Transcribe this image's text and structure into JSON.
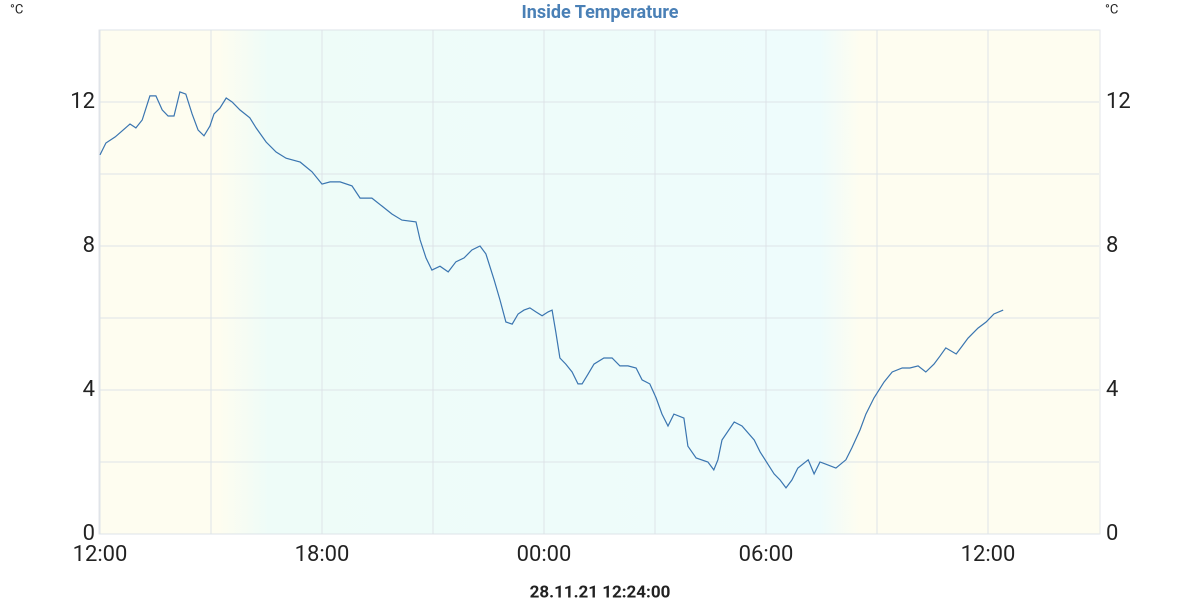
{
  "chart_data": {
    "type": "line",
    "title": "Inside Temperature",
    "y_unit": "°C",
    "y2_unit": "°C",
    "footer": "28.11.21 12:24:00",
    "xlim": [
      0,
      27
    ],
    "xticks": [
      {
        "value": 0,
        "label": "12:00"
      },
      {
        "value": 6,
        "label": "18:00"
      },
      {
        "value": 12,
        "label": "00:00"
      },
      {
        "value": 18,
        "label": "06:00"
      },
      {
        "value": 24,
        "label": "12:00"
      }
    ],
    "xminor": [
      3,
      9,
      15,
      21
    ],
    "ylim": [
      0,
      14
    ],
    "yticks": [
      0,
      4,
      8,
      12
    ],
    "yminor": [
      2,
      6,
      10,
      14
    ],
    "y2lim": [
      0,
      14
    ],
    "y2ticks": [
      0,
      4,
      8,
      12
    ],
    "grid": true,
    "x": [
      0,
      0.16,
      0.41,
      0.59,
      0.81,
      0.97,
      1.14,
      1.35,
      1.51,
      1.68,
      1.84,
      2.0,
      2.16,
      2.32,
      2.49,
      2.65,
      2.81,
      2.97,
      3.08,
      3.24,
      3.41,
      3.57,
      3.78,
      4.05,
      4.22,
      4.49,
      4.76,
      5.03,
      5.41,
      5.73,
      6.0,
      6.22,
      6.49,
      6.81,
      7.03,
      7.35,
      7.62,
      7.89,
      8.16,
      8.54,
      8.65,
      8.81,
      8.97,
      9.19,
      9.41,
      9.62,
      9.84,
      10.05,
      10.27,
      10.43,
      10.65,
      10.81,
      10.97,
      11.14,
      11.3,
      11.46,
      11.62,
      11.78,
      11.95,
      12.11,
      12.22,
      12.32,
      12.43,
      12.59,
      12.76,
      12.92,
      13.03,
      13.19,
      13.35,
      13.62,
      13.84,
      14.05,
      14.27,
      14.49,
      14.65,
      14.86,
      15.03,
      15.19,
      15.35,
      15.51,
      15.78,
      15.89,
      16.11,
      16.43,
      16.59,
      16.7,
      16.81,
      17.14,
      17.35,
      17.68,
      17.84,
      18.05,
      18.22,
      18.38,
      18.54,
      18.7,
      18.86,
      19.14,
      19.3,
      19.46,
      19.62,
      19.89,
      20.16,
      20.32,
      20.54,
      20.7,
      20.92,
      21.19,
      21.41,
      21.68,
      21.89,
      22.11,
      22.32,
      22.54,
      22.7,
      22.86,
      23.14,
      23.3,
      23.46,
      23.73,
      23.95,
      24.16,
      24.41
    ],
    "series": [
      {
        "name": "Inside Temperature",
        "color": "#3a75b0",
        "values": [
          10.53,
          10.86,
          11.03,
          11.19,
          11.39,
          11.28,
          11.5,
          12.17,
          12.17,
          11.78,
          11.61,
          11.61,
          12.28,
          12.22,
          11.67,
          11.22,
          11.06,
          11.33,
          11.67,
          11.83,
          12.11,
          12.0,
          11.78,
          11.56,
          11.28,
          10.89,
          10.61,
          10.44,
          10.33,
          10.06,
          9.72,
          9.78,
          9.78,
          9.67,
          9.33,
          9.33,
          9.11,
          8.89,
          8.72,
          8.67,
          8.17,
          7.67,
          7.33,
          7.44,
          7.28,
          7.56,
          7.67,
          7.89,
          8.0,
          7.78,
          7.06,
          6.5,
          5.89,
          5.83,
          6.11,
          6.22,
          6.28,
          6.17,
          6.06,
          6.17,
          6.22,
          5.61,
          4.89,
          4.72,
          4.5,
          4.17,
          4.17,
          4.44,
          4.72,
          4.89,
          4.89,
          4.67,
          4.67,
          4.61,
          4.28,
          4.17,
          3.78,
          3.33,
          3.0,
          3.33,
          3.22,
          2.44,
          2.11,
          2.0,
          1.78,
          2.06,
          2.61,
          3.11,
          3.0,
          2.61,
          2.28,
          1.94,
          1.67,
          1.5,
          1.28,
          1.5,
          1.83,
          2.06,
          1.67,
          2.0,
          1.94,
          1.83,
          2.06,
          2.39,
          2.89,
          3.33,
          3.78,
          4.22,
          4.5,
          4.61,
          4.61,
          4.67,
          4.5,
          4.72,
          4.94,
          5.17,
          5.0,
          5.22,
          5.44,
          5.72,
          5.89,
          6.11,
          6.22
        ]
      }
    ]
  }
}
